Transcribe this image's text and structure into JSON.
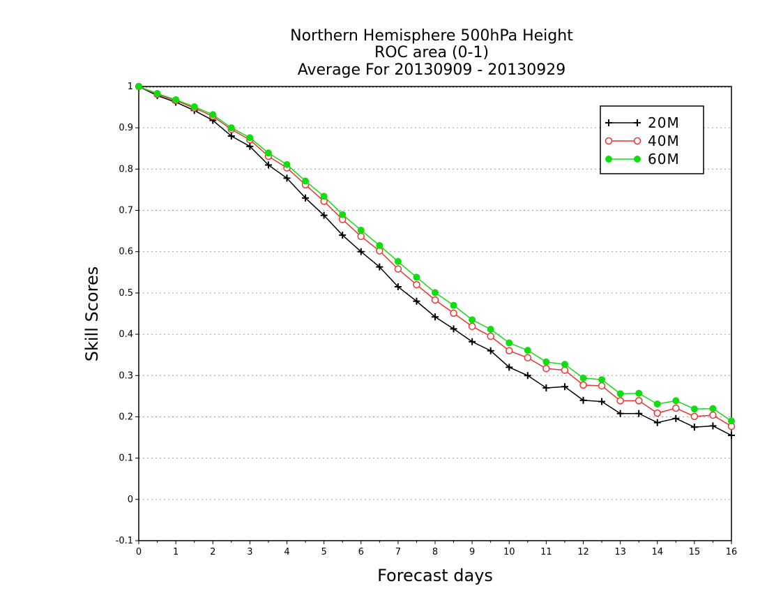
{
  "chart_data": {
    "type": "line",
    "title_lines": [
      "Northern Hemisphere 500hPa Height",
      "ROC area (0-1)",
      "Average For 20130909 - 20130929"
    ],
    "xlabel": "Forecast days",
    "ylabel": "Skill Scores",
    "xlim": [
      0,
      16
    ],
    "ylim": [
      -0.1,
      1
    ],
    "x_ticks": [
      0,
      1,
      2,
      3,
      4,
      5,
      6,
      7,
      8,
      9,
      10,
      11,
      12,
      13,
      14,
      15,
      16
    ],
    "y_ticks": [
      -0.1,
      0,
      0.1,
      0.2,
      0.3,
      0.4,
      0.5,
      0.6,
      0.7,
      0.8,
      0.9,
      1
    ],
    "y_tick_labels": [
      "-0.1",
      "0",
      "0.1",
      "0.2",
      "0.3",
      "0.4",
      "0.5",
      "0.6",
      "0.7",
      "0.8",
      "0.9",
      "1"
    ],
    "grid": "horizontal dotted",
    "legend_position": "top-right",
    "x": [
      0,
      0.5,
      1,
      1.5,
      2,
      2.5,
      3,
      3.5,
      4,
      4.5,
      5,
      5.5,
      6,
      6.5,
      7,
      7.5,
      8,
      8.5,
      9,
      9.5,
      10,
      10.5,
      11,
      11.5,
      12,
      12.5,
      13,
      13.5,
      14,
      14.5,
      15,
      15.5,
      16
    ],
    "series": [
      {
        "name": "20M",
        "color": "#000000",
        "marker": "plus",
        "values": [
          1.0,
          0.978,
          0.962,
          0.942,
          0.918,
          0.88,
          0.855,
          0.81,
          0.778,
          0.73,
          0.688,
          0.64,
          0.6,
          0.563,
          0.515,
          0.48,
          0.442,
          0.413,
          0.382,
          0.36,
          0.32,
          0.3,
          0.27,
          0.273,
          0.24,
          0.237,
          0.208,
          0.208,
          0.186,
          0.196,
          0.175,
          0.178,
          0.155
        ]
      },
      {
        "name": "40M",
        "color": "#ee3333",
        "marker": "open-circle",
        "values": [
          1.0,
          0.981,
          0.966,
          0.948,
          0.928,
          0.896,
          0.871,
          0.831,
          0.803,
          0.762,
          0.722,
          0.678,
          0.637,
          0.602,
          0.558,
          0.52,
          0.483,
          0.451,
          0.419,
          0.395,
          0.36,
          0.343,
          0.317,
          0.313,
          0.277,
          0.275,
          0.239,
          0.239,
          0.209,
          0.221,
          0.201,
          0.204,
          0.177
        ]
      },
      {
        "name": "60M",
        "color": "#11dd11",
        "marker": "filled-circle",
        "values": [
          1.0,
          0.983,
          0.968,
          0.951,
          0.932,
          0.9,
          0.876,
          0.839,
          0.811,
          0.771,
          0.734,
          0.69,
          0.652,
          0.615,
          0.576,
          0.538,
          0.501,
          0.47,
          0.435,
          0.412,
          0.379,
          0.361,
          0.333,
          0.327,
          0.294,
          0.29,
          0.256,
          0.257,
          0.231,
          0.239,
          0.219,
          0.22,
          0.19
        ]
      }
    ]
  }
}
